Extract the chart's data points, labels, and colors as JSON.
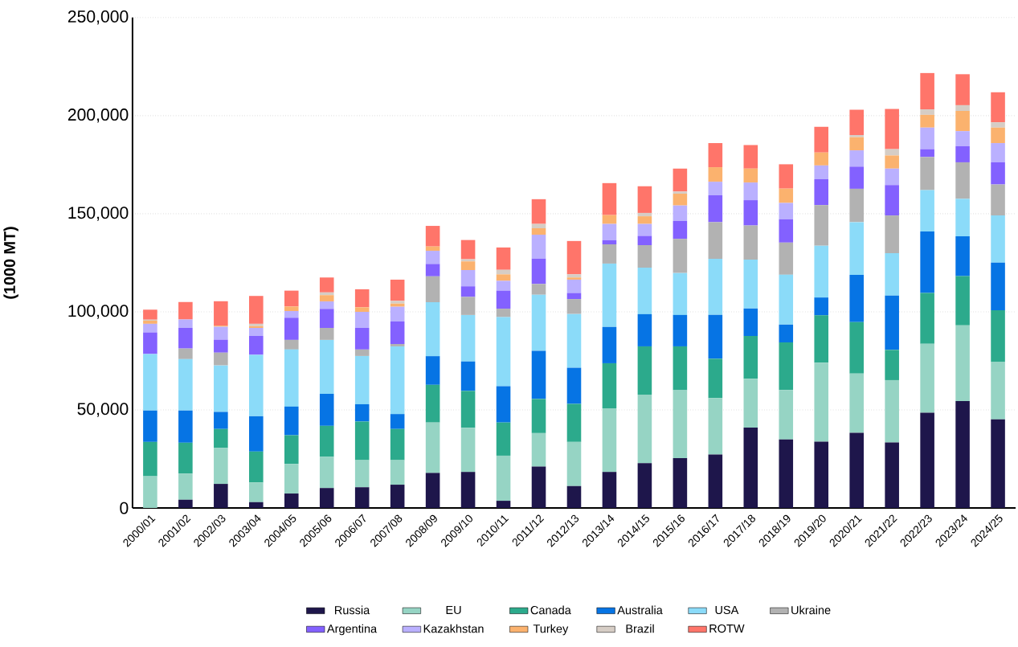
{
  "chart_data": {
    "type": "bar",
    "stacked": true,
    "ylabel": "(1000 MT)",
    "categories": [
      "2000/01",
      "2001/02",
      "2002/03",
      "2003/04",
      "2004/05",
      "2005/06",
      "2006/07",
      "2007/08",
      "2008/09",
      "2009/10",
      "2010/11",
      "2011/12",
      "2012/13",
      "2013/14",
      "2014/15",
      "2015/16",
      "2016/17",
      "2017/18",
      "2018/19",
      "2019/20",
      "2020/21",
      "2021/22",
      "2022/23",
      "2023/24",
      "2024/25"
    ],
    "series": [
      {
        "name": "Russia",
        "color": "#1e164b",
        "values": [
          0,
          4200,
          12300,
          3000,
          7400,
          10200,
          10600,
          11900,
          17900,
          18400,
          3700,
          21100,
          11200,
          18400,
          22900,
          25400,
          27300,
          41000,
          35000,
          33800,
          38300,
          33400,
          48600,
          54500,
          45200
        ]
      },
      {
        "name": "EU",
        "color": "#96d4c4",
        "values": [
          16200,
          13300,
          18300,
          10000,
          15100,
          15900,
          13800,
          12500,
          25700,
          22500,
          23000,
          17100,
          22500,
          32400,
          34900,
          34700,
          28700,
          24900,
          25200,
          40300,
          30300,
          31800,
          35100,
          38600,
          29200
        ]
      },
      {
        "name": "Canada",
        "color": "#2caa8c",
        "values": [
          17500,
          15800,
          9700,
          15800,
          14600,
          15800,
          19700,
          15900,
          19200,
          18800,
          16900,
          17400,
          19400,
          23000,
          24600,
          22300,
          20100,
          21800,
          24200,
          24100,
          26200,
          15400,
          25900,
          25100,
          26400
        ]
      },
      {
        "name": "Australia",
        "color": "#0674e4",
        "values": [
          16000,
          16400,
          8700,
          18000,
          14600,
          16300,
          8800,
          7600,
          14600,
          15000,
          18500,
          24500,
          18400,
          18500,
          16400,
          16000,
          22400,
          14000,
          9100,
          9100,
          24000,
          27700,
          31400,
          20300,
          24300
        ]
      },
      {
        "name": "USA",
        "color": "#8bdbf9",
        "values": [
          28800,
          26200,
          23700,
          31300,
          29100,
          27500,
          24600,
          34500,
          27500,
          23700,
          35200,
          28600,
          27400,
          32300,
          23700,
          21400,
          28500,
          24900,
          25400,
          26400,
          26900,
          21600,
          21000,
          19100,
          24000
        ]
      },
      {
        "name": "Ukraine",
        "color": "#b2b2b2",
        "values": [
          0,
          5400,
          6500,
          0,
          4900,
          6100,
          3300,
          1200,
          13200,
          9200,
          4300,
          5500,
          7600,
          9800,
          11500,
          17400,
          18700,
          17400,
          16400,
          20700,
          17000,
          19200,
          16900,
          18600,
          15800
        ]
      },
      {
        "name": "Argentina",
        "color": "#8361ff",
        "values": [
          11000,
          10500,
          6600,
          9600,
          11300,
          9700,
          11000,
          11500,
          6300,
          5400,
          9200,
          12900,
          3100,
          2100,
          4700,
          9100,
          13700,
          12900,
          11900,
          13200,
          11300,
          15500,
          4000,
          8200,
          11300
        ]
      },
      {
        "name": "Kazakhstan",
        "color": "#bab0ff",
        "values": [
          4400,
          4300,
          6600,
          4100,
          3400,
          3800,
          8200,
          7500,
          6700,
          8300,
          5000,
          12200,
          6800,
          8300,
          6100,
          7900,
          6900,
          9000,
          8300,
          7000,
          8300,
          8400,
          11000,
          7700,
          9800
        ]
      },
      {
        "name": "Turkey",
        "color": "#fbb26e",
        "values": [
          1600,
          null,
          600,
          900,
          2300,
          3200,
          2300,
          1600,
          2200,
          4400,
          3300,
          3300,
          1100,
          4500,
          3900,
          6000,
          7400,
          7100,
          7300,
          6600,
          6700,
          6700,
          6500,
          10300,
          7900
        ]
      },
      {
        "name": "Brazil",
        "color": "#d6cdc5",
        "values": [
          500,
          0,
          0,
          1200,
          0,
          1400,
          0,
          1400,
          null,
          1100,
          2300,
          2200,
          1600,
          0,
          1700,
          1100,
          null,
          0,
          null,
          0,
          1100,
          3200,
          2800,
          2900,
          2700
        ]
      },
      {
        "name": "ROTW",
        "color": "#ff756a",
        "values": [
          5100,
          8900,
          12400,
          14200,
          8100,
          7600,
          9200,
          10800,
          10500,
          9800,
          11400,
          12600,
          17000,
          16300,
          13600,
          11700,
          12300,
          12000,
          12400,
          13100,
          12900,
          20500,
          18500,
          15800,
          15300
        ]
      }
    ],
    "ylim": [
      0,
      250000
    ],
    "yticks": [
      0,
      {
        "value": 50000,
        "label": "50,000"
      },
      {
        "value": 100000,
        "label": "100,000"
      },
      {
        "value": 150000,
        "label": "150,000"
      },
      {
        "value": 200000,
        "label": "200,000"
      },
      {
        "value": 250000,
        "label": "250,000"
      }
    ],
    "grid": "y",
    "legend": "bottom"
  }
}
